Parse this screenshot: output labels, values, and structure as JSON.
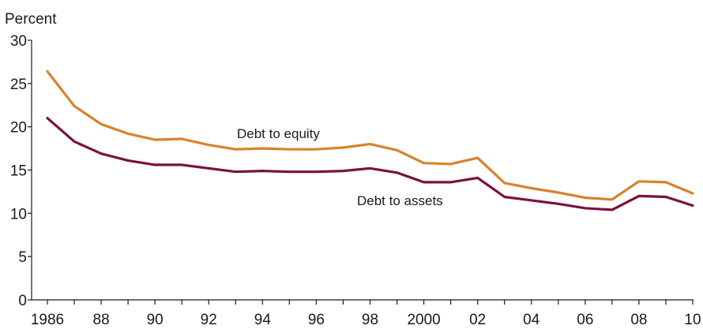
{
  "chart_data": {
    "type": "line",
    "ylabel": "Percent",
    "ylim": [
      0,
      30
    ],
    "yticks": [
      0,
      5,
      10,
      15,
      20,
      25,
      30
    ],
    "xlim": [
      1986,
      2010
    ],
    "x": [
      1986,
      1987,
      1988,
      1989,
      1990,
      1991,
      1992,
      1993,
      1994,
      1995,
      1996,
      1997,
      1998,
      1999,
      2000,
      2001,
      2002,
      2003,
      2004,
      2005,
      2006,
      2007,
      2008,
      2009,
      2010
    ],
    "xticks": [
      {
        "value": 1986,
        "label": "1986"
      },
      {
        "value": 1988,
        "label": "88"
      },
      {
        "value": 1990,
        "label": "90"
      },
      {
        "value": 1992,
        "label": "92"
      },
      {
        "value": 1994,
        "label": "94"
      },
      {
        "value": 1996,
        "label": "96"
      },
      {
        "value": 1998,
        "label": "98"
      },
      {
        "value": 2000,
        "label": "2000"
      },
      {
        "value": 2002,
        "label": "02"
      },
      {
        "value": 2004,
        "label": "04"
      },
      {
        "value": 2006,
        "label": "06"
      },
      {
        "value": 2008,
        "label": "08"
      },
      {
        "value": 2010,
        "label": "10"
      }
    ],
    "grid": false,
    "legend": "none (series labeled directly on chart)",
    "series": [
      {
        "name": "Debt to equity",
        "color": "#D9822B",
        "values": [
          26.4,
          22.4,
          20.3,
          19.2,
          18.5,
          18.6,
          17.9,
          17.4,
          17.5,
          17.4,
          17.4,
          17.6,
          18.0,
          17.3,
          15.8,
          15.7,
          16.4,
          13.5,
          12.9,
          12.4,
          11.8,
          11.6,
          13.7,
          13.6,
          12.3
        ]
      },
      {
        "name": "Debt to assets",
        "color": "#7B1040",
        "values": [
          21.0,
          18.3,
          16.9,
          16.1,
          15.6,
          15.6,
          15.2,
          14.8,
          14.9,
          14.8,
          14.8,
          14.9,
          15.2,
          14.7,
          13.6,
          13.6,
          14.1,
          11.9,
          11.5,
          11.1,
          10.6,
          10.4,
          12.0,
          11.9,
          10.9
        ]
      }
    ]
  }
}
